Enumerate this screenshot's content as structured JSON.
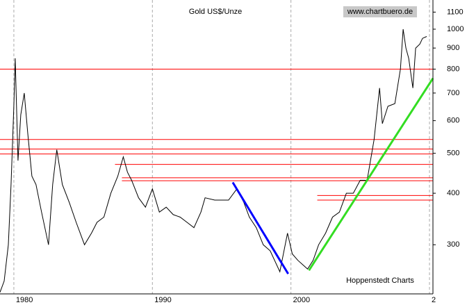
{
  "chart_data": {
    "type": "line",
    "title": "Gold US$/Unze",
    "source": "www.chartbuero.de",
    "credit": "Hoppenstedt Charts",
    "log_y": true,
    "grid": true,
    "xlim": [
      1979,
      2010.25
    ],
    "xticks": [
      1980,
      1990,
      2000,
      {
        "value": 2010,
        "label": "2"
      }
    ],
    "ylim": [
      228,
      1177
    ],
    "yticks": [
      300,
      400,
      500,
      600,
      700,
      800,
      900,
      1000,
      1100
    ],
    "series": [
      {
        "color": "#000000",
        "x": [
          1979.0,
          1979.3,
          1979.6,
          1979.8,
          1980.0,
          1980.1,
          1980.3,
          1980.5,
          1980.75,
          1981.0,
          1981.3,
          1981.6,
          1982.0,
          1982.5,
          1982.8,
          1983.1,
          1983.5,
          1984.0,
          1984.5,
          1985.1,
          1985.6,
          1986.0,
          1986.5,
          1987.0,
          1987.5,
          1987.9,
          1988.2,
          1988.5,
          1989.0,
          1989.5,
          1990.0,
          1990.5,
          1991.0,
          1991.5,
          1992.0,
          1992.5,
          1993.0,
          1993.5,
          1993.8,
          1994.5,
          1995.0,
          1995.5,
          1996.1,
          1996.6,
          1997.0,
          1997.5,
          1998.0,
          1998.5,
          1999.2,
          1999.75,
          2000.1,
          2000.5,
          2001.2,
          2001.6,
          2002.0,
          2002.5,
          2003.0,
          2003.5,
          2004.0,
          2004.5,
          2005.0,
          2005.5,
          2006.0,
          2006.4,
          2006.6,
          2007.0,
          2007.5,
          2007.9,
          2008.1,
          2008.3,
          2008.5,
          2008.8,
          2009.0,
          2009.3,
          2009.5,
          2009.8
        ],
        "values": [
          230,
          245,
          300,
          420,
          650,
          850,
          480,
          620,
          700,
          560,
          440,
          420,
          360,
          300,
          420,
          510,
          420,
          380,
          340,
          300,
          320,
          340,
          350,
          400,
          440,
          490,
          450,
          430,
          390,
          370,
          410,
          360,
          370,
          355,
          350,
          340,
          330,
          360,
          390,
          385,
          385,
          385,
          410,
          380,
          350,
          330,
          300,
          290,
          258,
          320,
          285,
          275,
          262,
          275,
          300,
          320,
          350,
          360,
          400,
          400,
          430,
          430,
          540,
          720,
          590,
          650,
          660,
          800,
          1000,
          900,
          850,
          720,
          900,
          920,
          950,
          960
        ]
      }
    ],
    "levels": [
      {
        "value": 800,
        "x_start": 1979
      },
      {
        "value": 540,
        "x_start": 1979
      },
      {
        "value": 512,
        "x_start": 1979
      },
      {
        "value": 498,
        "x_start": 1979
      },
      {
        "value": 470,
        "x_start": 1987.3
      },
      {
        "value": 436,
        "x_start": 1987.8
      },
      {
        "value": 429,
        "x_start": 1987.8
      },
      {
        "value": 395,
        "x_start": 2001.9
      },
      {
        "value": 385,
        "x_start": 2001.9
      }
    ],
    "level_color": "#ff0000",
    "trendlines": [
      {
        "color": "#0000ff",
        "x": [
          1995.8,
          1999.8
        ],
        "values": [
          425,
          255
        ]
      },
      {
        "color": "#33dd22",
        "x": [
          2001.3,
          2010.25
        ],
        "values": [
          260,
          760
        ]
      }
    ]
  }
}
